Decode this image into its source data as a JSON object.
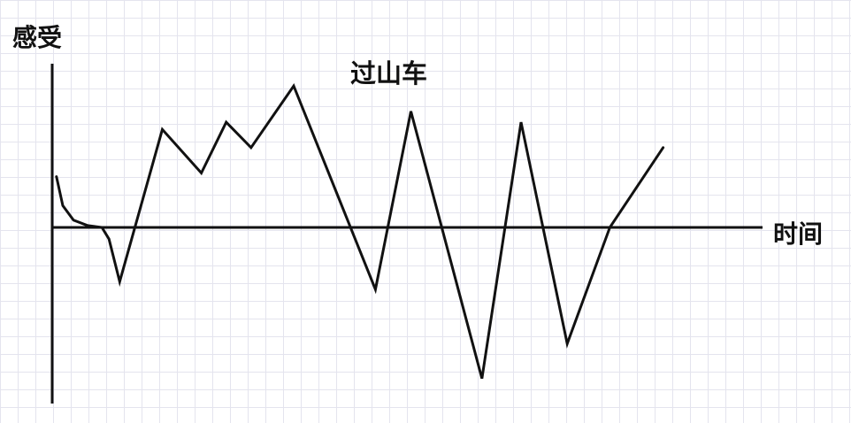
{
  "chart_data": {
    "type": "line",
    "title": "过山车",
    "xlabel": "时间",
    "ylabel": "感受",
    "grid": true,
    "x_ticks": false,
    "y_ticks": false,
    "xlim": [
      0,
      100
    ],
    "ylim": [
      -50,
      50
    ],
    "series": [
      {
        "values_note_free": true,
        "points": [
          {
            "x": 0.6,
            "y": 14
          },
          {
            "x": 1.5,
            "y": 6
          },
          {
            "x": 3.0,
            "y": 2
          },
          {
            "x": 5.0,
            "y": 0.5
          },
          {
            "x": 7.0,
            "y": 0
          },
          {
            "x": 8.0,
            "y": -3
          },
          {
            "x": 9.5,
            "y": -14
          },
          {
            "x": 15.5,
            "y": 27
          },
          {
            "x": 21.0,
            "y": 15
          },
          {
            "x": 24.5,
            "y": 29
          },
          {
            "x": 28.0,
            "y": 22
          },
          {
            "x": 34.0,
            "y": 39
          },
          {
            "x": 45.5,
            "y": -16
          },
          {
            "x": 50.5,
            "y": 32
          },
          {
            "x": 60.5,
            "y": -39
          },
          {
            "x": 66.0,
            "y": 29
          },
          {
            "x": 72.5,
            "y": -30
          },
          {
            "x": 78.5,
            "y": 0
          },
          {
            "x": 86.0,
            "y": 22
          }
        ]
      }
    ],
    "colors": {
      "line": "#111111",
      "grid": "#e4e4ee",
      "background": "#ffffff"
    }
  }
}
